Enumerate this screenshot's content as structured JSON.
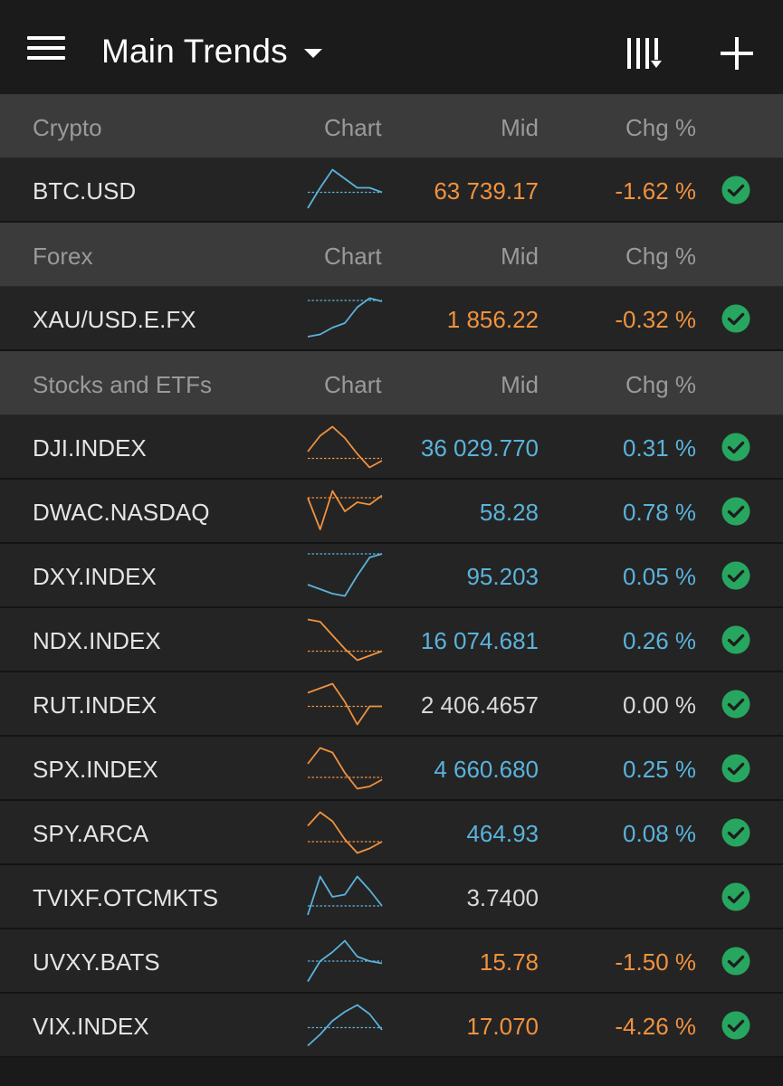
{
  "header": {
    "title": "Main Trends",
    "menu_icon": "hamburger-menu-icon",
    "sort_icon": "column-sort-icon",
    "add_icon": "plus-icon"
  },
  "colors": {
    "up": "#5ab3dc",
    "down": "#f0923e",
    "flat": "#d8d8d8",
    "check": "#27a660",
    "section_bg": "#3b3b3b",
    "row_bg": "#242424"
  },
  "sections": [
    {
      "name": "Crypto",
      "col_chart": "Chart",
      "col_mid": "Mid",
      "col_chg": "Chg %",
      "rows": [
        {
          "symbol": "BTC.USD",
          "mid": "63 739.17",
          "chg": "-1.62 %",
          "trend": "down",
          "spark_color": "up",
          "spark": [
            0.1,
            0.55,
            0.95,
            0.75,
            0.55,
            0.55,
            0.45
          ],
          "baseline": 0.45
        }
      ]
    },
    {
      "name": "Forex",
      "col_chart": "Chart",
      "col_mid": "Mid",
      "col_chg": "Chg %",
      "rows": [
        {
          "symbol": "XAU/USD.E.FX",
          "mid": "1 856.22",
          "chg": "-0.32 %",
          "trend": "down",
          "spark_color": "up",
          "spark": [
            0.1,
            0.15,
            0.3,
            0.4,
            0.75,
            0.95,
            0.88
          ],
          "baseline": 0.9
        }
      ]
    },
    {
      "name": "Stocks and ETFs",
      "col_chart": "Chart",
      "col_mid": "Mid",
      "col_chg": "Chg %",
      "rows": [
        {
          "symbol": "DJI.INDEX",
          "mid": "36 029.770",
          "chg": "0.31 %",
          "trend": "up",
          "spark_color": "down",
          "spark": [
            0.4,
            0.75,
            0.95,
            0.7,
            0.35,
            0.05,
            0.2
          ],
          "baseline": 0.25
        },
        {
          "symbol": "DWAC.NASDAQ",
          "mid": "58.28",
          "chg": "0.78 %",
          "trend": "up",
          "spark_color": "down",
          "spark": [
            0.8,
            0.1,
            0.95,
            0.5,
            0.7,
            0.65,
            0.85
          ],
          "baseline": 0.8
        },
        {
          "symbol": "DXY.INDEX",
          "mid": "95.203",
          "chg": "0.05 %",
          "trend": "up",
          "spark_color": "up",
          "spark": [
            0.3,
            0.2,
            0.1,
            0.05,
            0.5,
            0.9,
            0.98
          ],
          "baseline": 0.98
        },
        {
          "symbol": "NDX.INDEX",
          "mid": "16 074.681",
          "chg": "0.26 %",
          "trend": "up",
          "spark_color": "down",
          "spark": [
            0.95,
            0.9,
            0.6,
            0.3,
            0.05,
            0.15,
            0.25
          ],
          "baseline": 0.25
        },
        {
          "symbol": "RUT.INDEX",
          "mid": "2 406.4657",
          "chg": "0.00 %",
          "trend": "flat",
          "spark_color": "down",
          "spark": [
            0.75,
            0.85,
            0.95,
            0.55,
            0.05,
            0.45,
            0.45
          ],
          "baseline": 0.45
        },
        {
          "symbol": "SPX.INDEX",
          "mid": "4 660.680",
          "chg": "0.25 %",
          "trend": "up",
          "spark_color": "down",
          "spark": [
            0.6,
            0.95,
            0.85,
            0.4,
            0.05,
            0.1,
            0.25
          ],
          "baseline": 0.3
        },
        {
          "symbol": "SPY.ARCA",
          "mid": "464.93",
          "chg": "0.08 %",
          "trend": "up",
          "spark_color": "down",
          "spark": [
            0.65,
            0.95,
            0.75,
            0.35,
            0.05,
            0.15,
            0.3
          ],
          "baseline": 0.3
        },
        {
          "symbol": "TVIXF.OTCMKTS",
          "mid": "3.7400",
          "chg": "",
          "trend": "flat",
          "spark_color": "up",
          "spark": [
            0.1,
            0.95,
            0.5,
            0.55,
            0.95,
            0.65,
            0.3
          ],
          "baseline": 0.3
        },
        {
          "symbol": "UVXY.BATS",
          "mid": "15.78",
          "chg": "-1.50 %",
          "trend": "down",
          "spark_color": "up",
          "spark": [
            0.05,
            0.5,
            0.7,
            0.95,
            0.6,
            0.5,
            0.45
          ],
          "baseline": 0.5
        },
        {
          "symbol": "VIX.INDEX",
          "mid": "17.070",
          "chg": "-4.26 %",
          "trend": "down",
          "spark_color": "up",
          "spark": [
            0.05,
            0.3,
            0.6,
            0.8,
            0.95,
            0.75,
            0.4
          ],
          "baseline": 0.45
        }
      ]
    }
  ]
}
